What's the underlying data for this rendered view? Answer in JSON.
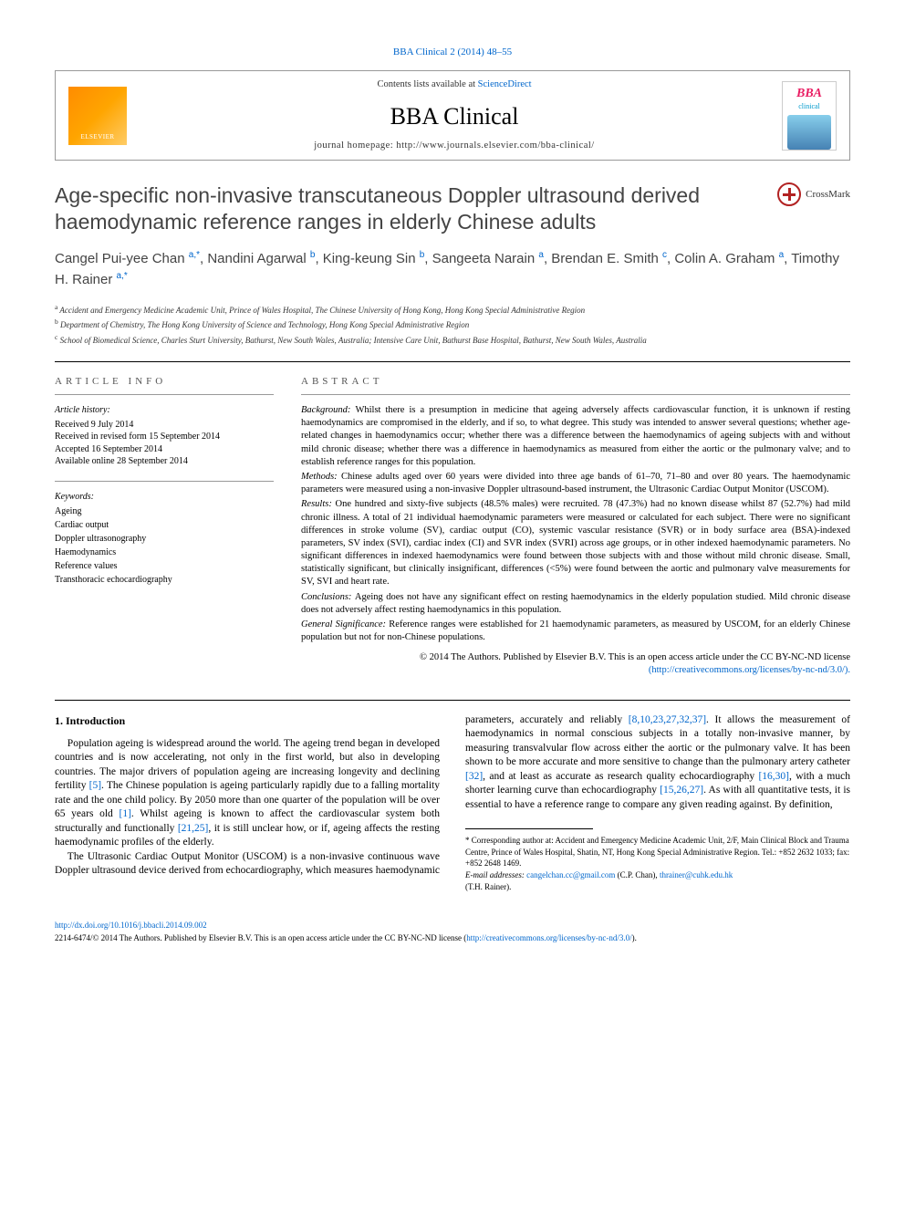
{
  "top_link_text": "BBA Clinical 2 (2014) 48–55",
  "header": {
    "publisher": "ELSEVIER",
    "contents_prefix": "Contents lists available at ",
    "contents_link": "ScienceDirect",
    "journal": "BBA Clinical",
    "homepage_prefix": "journal homepage: ",
    "homepage_url": "http://www.journals.elsevier.com/bba-clinical/",
    "cover_tag": "BBA",
    "cover_sub": "clinical"
  },
  "title": "Age-specific non-invasive transcutaneous Doppler ultrasound derived haemodynamic reference ranges in elderly Chinese adults",
  "crossmark": "CrossMark",
  "authors_html": "Cangel Pui-yee Chan <sup>a,*</sup>, Nandini Agarwal <sup>b</sup>, King-keung Sin <sup>b</sup>, Sangeeta Narain <sup>a</sup>, Brendan E. Smith <sup>c</sup>, Colin A. Graham <sup>a</sup>, Timothy H. Rainer <sup>a,*</sup>",
  "affiliations": [
    {
      "sup": "a",
      "text": "Accident and Emergency Medicine Academic Unit, Prince of Wales Hospital, The Chinese University of Hong Kong, Hong Kong Special Administrative Region"
    },
    {
      "sup": "b",
      "text": "Department of Chemistry, The Hong Kong University of Science and Technology, Hong Kong Special Administrative Region"
    },
    {
      "sup": "c",
      "text": "School of Biomedical Science, Charles Sturt University, Bathurst, New South Wales, Australia; Intensive Care Unit, Bathurst Base Hospital, Bathurst, New South Wales, Australia"
    }
  ],
  "article_info": {
    "heading": "article info",
    "history_label": "Article history:",
    "history": [
      "Received 9 July 2014",
      "Received in revised form 15 September 2014",
      "Accepted 16 September 2014",
      "Available online 28 September 2014"
    ],
    "keywords_label": "Keywords:",
    "keywords": [
      "Ageing",
      "Cardiac output",
      "Doppler ultrasonography",
      "Haemodynamics",
      "Reference values",
      "Transthoracic echocardiography"
    ]
  },
  "abstract": {
    "heading": "abstract",
    "sections": [
      {
        "label": "Background:",
        "text": "Whilst there is a presumption in medicine that ageing adversely affects cardiovascular function, it is unknown if resting haemodynamics are compromised in the elderly, and if so, to what degree. This study was intended to answer several questions; whether age-related changes in haemodynamics occur; whether there was a difference between the haemodynamics of ageing subjects with and without mild chronic disease; whether there was a difference in haemodynamics as measured from either the aortic or the pulmonary valve; and to establish reference ranges for this population."
      },
      {
        "label": "Methods:",
        "text": "Chinese adults aged over 60 years were divided into three age bands of 61–70, 71–80 and over 80 years. The haemodynamic parameters were measured using a non-invasive Doppler ultrasound-based instrument, the Ultrasonic Cardiac Output Monitor (USCOM)."
      },
      {
        "label": "Results:",
        "text": "One hundred and sixty-five subjects (48.5% males) were recruited. 78 (47.3%) had no known disease whilst 87 (52.7%) had mild chronic illness. A total of 21 individual haemodynamic parameters were measured or calculated for each subject. There were no significant differences in stroke volume (SV), cardiac output (CO), systemic vascular resistance (SVR) or in body surface area (BSA)-indexed parameters, SV index (SVI), cardiac index (CI) and SVR index (SVRI) across age groups, or in other indexed haemodynamic parameters. No significant differences in indexed haemodynamics were found between those subjects with and those without mild chronic disease. Small, statistically significant, but clinically insignificant, differences (<5%) were found between the aortic and pulmonary valve measurements for SV, SVI and heart rate."
      },
      {
        "label": "Conclusions:",
        "text": "Ageing does not have any significant effect on resting haemodynamics in the elderly population studied. Mild chronic disease does not adversely affect resting haemodynamics in this population."
      },
      {
        "label": "General Significance:",
        "text": "Reference ranges were established for 21 haemodynamic parameters, as measured by USCOM, for an elderly Chinese population but not for non-Chinese populations."
      }
    ],
    "copyright": "© 2014 The Authors. Published by Elsevier B.V. This is an open access article under the CC BY-NC-ND license",
    "license_url": "(http://creativecommons.org/licenses/by-nc-nd/3.0/).",
    "license_href": "http://creativecommons.org/licenses/by-nc-nd/3.0/"
  },
  "intro": {
    "heading": "1. Introduction",
    "p1_pre": "Population ageing is widespread around the world. The ageing trend began in developed countries and is now accelerating, not only in the first world, but also in developing countries. The major drivers of population ageing are increasing longevity and declining fertility ",
    "p1_ref1": "[5]",
    "p1_post": ". The Chinese population is ageing particularly rapidly due to a falling mortality rate and the one child policy. By 2050 more than one quarter of the population will be over 65 years old ",
    "p2_ref1": "[1]",
    "p2_mid1": ". Whilst ageing is known to affect the cardiovascular system both structurally and functionally ",
    "p2_ref2": "[21,25]",
    "p2_mid2": ", it is still unclear how, or if, ageing affects the resting haemodynamic profiles of the elderly.",
    "p3_pre": "The Ultrasonic Cardiac Output Monitor (USCOM) is a non-invasive continuous wave Doppler ultrasound device derived from echocardiography, which measures haemodynamic parameters, accurately and reliably ",
    "p3_ref1": "[8,10,23,27,32,37]",
    "p3_mid1": ". It allows the measurement of haemodynamics in normal conscious subjects in a totally non-invasive manner, by measuring transvalvular flow across either the aortic or the pulmonary valve. It has been shown to be more accurate and more sensitive to change than the pulmonary artery catheter ",
    "p3_ref2": "[32]",
    "p3_mid2": ", and at least as accurate as research quality echocardiography ",
    "p3_ref3": "[16,30]",
    "p3_mid3": ", with a much shorter learning curve than echocardiography ",
    "p3_ref4": "[15,26,27]",
    "p3_mid4": ". As with all quantitative tests, it is essential to have a reference range to compare any given reading against. By definition,"
  },
  "footnotes": {
    "corr": "* Corresponding author at: Accident and Emergency Medicine Academic Unit, 2/F, Main Clinical Block and Trauma Centre, Prince of Wales Hospital, Shatin, NT, Hong Kong Special Administrative Region. Tel.: +852 2632 1033; fax: +852 2648 1469.",
    "email_label": "E-mail addresses: ",
    "email1": "cangelchan.cc@gmail.com",
    "email1_who": " (C.P. Chan), ",
    "email2": "thrainer@cuhk.edu.hk",
    "email2_who": " (T.H. Rainer)."
  },
  "footer": {
    "doi": "http://dx.doi.org/10.1016/j.bbacli.2014.09.002",
    "issn_line_pre": "2214-6474/© 2014 The Authors. Published by Elsevier B.V. This is an open access article under the CC BY-NC-ND license (",
    "issn_url": "http://creativecommons.org/licenses/by-nc-nd/3.0/",
    "issn_line_post": ")."
  },
  "colors": {
    "link": "#0066cc",
    "elsevier_orange": "#ff8c00",
    "crossmark_red": "#b22222",
    "bba_pink": "#e91e63"
  }
}
